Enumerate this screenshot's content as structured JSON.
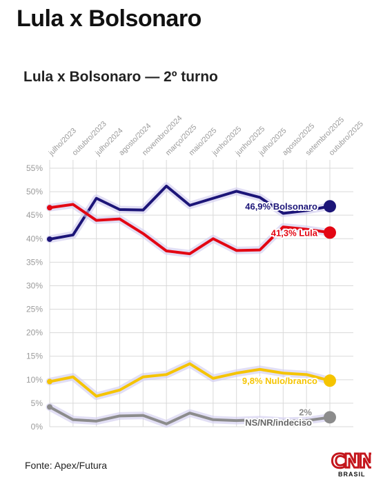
{
  "page_title": "Lula x Bolsonaro",
  "source": "Fonte: Apex/Futura",
  "logo": {
    "text": "CNN",
    "subtext": "BRASIL"
  },
  "colors": {
    "bolsonaro": "#1c1578",
    "lula": "#e30613",
    "nulo": "#f5c400",
    "indeciso": "#8c8c8c",
    "halo": "#cfc9ee",
    "grid": "#d9d9d9",
    "axis_text": "#9a9a9a"
  },
  "chart_data": {
    "type": "line",
    "title": "Lula x Bolsonaro — 2º turno",
    "categories": [
      "julho/2023",
      "outubro/2023",
      "julho/2024",
      "agosto/2024",
      "novembro/2024",
      "março/2025",
      "maio/2025",
      "junho/2025",
      "junho/2025",
      "julho/2025",
      "agosto/2025",
      "setembro/2025",
      "outubro/2025"
    ],
    "ylim": [
      0,
      55
    ],
    "yticks": [
      0,
      5,
      10,
      15,
      20,
      25,
      30,
      35,
      40,
      45,
      50,
      55
    ],
    "ytick_labels": [
      "0%",
      "5%",
      "10%",
      "15%",
      "20%",
      "25%",
      "30%",
      "35%",
      "40%",
      "45%",
      "50%",
      "55%"
    ],
    "grid": true,
    "series": [
      {
        "key": "bolsonaro",
        "values": [
          39.9,
          40.8,
          48.6,
          46.2,
          46.1,
          51.2,
          47.1,
          48.6,
          50.1,
          48.8,
          45.4,
          46.0,
          46.9
        ],
        "end_label": "46,9% Bolsonaro"
      },
      {
        "key": "lula",
        "values": [
          46.6,
          47.3,
          43.9,
          44.2,
          41.1,
          37.4,
          36.8,
          40.0,
          37.5,
          37.6,
          42.5,
          42.0,
          41.3
        ],
        "end_label": "41,3% Lula"
      },
      {
        "key": "nulo",
        "values": [
          9.6,
          10.6,
          6.5,
          7.8,
          10.6,
          11.1,
          13.4,
          10.3,
          11.4,
          12.2,
          11.4,
          11.1,
          9.8
        ],
        "end_label": "9,8% Nulo/branco"
      },
      {
        "key": "indeciso",
        "values": [
          4.2,
          1.5,
          1.2,
          2.3,
          2.4,
          0.6,
          2.9,
          1.5,
          1.3,
          1.5,
          1.2,
          1.3,
          2.0
        ],
        "end_label": "2%",
        "end_label_2": "NS/NR/indeciso"
      }
    ]
  }
}
